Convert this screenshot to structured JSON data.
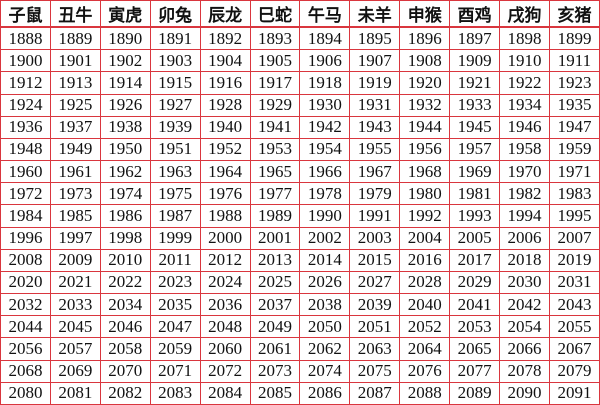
{
  "header": [
    "子鼠",
    "丑牛",
    "寅虎",
    "卯兔",
    "辰龙",
    "巳蛇",
    "午马",
    "未羊",
    "申猴",
    "酉鸡",
    "戌狗",
    "亥猪"
  ],
  "rows": [
    [
      "1888",
      "1889",
      "1890",
      "1891",
      "1892",
      "1893",
      "1894",
      "1895",
      "1896",
      "1897",
      "1898",
      "1899"
    ],
    [
      "1900",
      "1901",
      "1902",
      "1903",
      "1904",
      "1905",
      "1906",
      "1907",
      "1908",
      "1909",
      "1910",
      "1911"
    ],
    [
      "1912",
      "1913",
      "1914",
      "1915",
      "1916",
      "1917",
      "1918",
      "1919",
      "1920",
      "1921",
      "1922",
      "1923"
    ],
    [
      "1924",
      "1925",
      "1926",
      "1927",
      "1928",
      "1929",
      "1930",
      "1931",
      "1932",
      "1933",
      "1934",
      "1935"
    ],
    [
      "1936",
      "1937",
      "1938",
      "1939",
      "1940",
      "1941",
      "1942",
      "1943",
      "1944",
      "1945",
      "1946",
      "1947"
    ],
    [
      "1948",
      "1949",
      "1950",
      "1951",
      "1952",
      "1953",
      "1954",
      "1955",
      "1956",
      "1957",
      "1958",
      "1959"
    ],
    [
      "1960",
      "1961",
      "1962",
      "1963",
      "1964",
      "1965",
      "1966",
      "1967",
      "1968",
      "1969",
      "1970",
      "1971"
    ],
    [
      "1972",
      "1973",
      "1974",
      "1975",
      "1976",
      "1977",
      "1978",
      "1979",
      "1980",
      "1981",
      "1982",
      "1983"
    ],
    [
      "1984",
      "1985",
      "1986",
      "1987",
      "1988",
      "1989",
      "1990",
      "1991",
      "1992",
      "1993",
      "1994",
      "1995"
    ],
    [
      "1996",
      "1997",
      "1998",
      "1999",
      "2000",
      "2001",
      "2002",
      "2003",
      "2004",
      "2005",
      "2006",
      "2007"
    ],
    [
      "2008",
      "2009",
      "2010",
      "2011",
      "2012",
      "2013",
      "2014",
      "2015",
      "2016",
      "2017",
      "2018",
      "2019"
    ],
    [
      "2020",
      "2021",
      "2022",
      "2023",
      "2024",
      "2025",
      "2026",
      "2027",
      "2028",
      "2029",
      "2030",
      "2031"
    ],
    [
      "2032",
      "2033",
      "2034",
      "2035",
      "2036",
      "2037",
      "2038",
      "2039",
      "2040",
      "2041",
      "2042",
      "2043"
    ],
    [
      "2044",
      "2045",
      "2046",
      "2047",
      "2048",
      "2049",
      "2050",
      "2051",
      "2052",
      "2053",
      "2054",
      "2055"
    ],
    [
      "2056",
      "2057",
      "2058",
      "2059",
      "2060",
      "2061",
      "2062",
      "2063",
      "2064",
      "2065",
      "2066",
      "2067"
    ],
    [
      "2068",
      "2069",
      "2070",
      "2071",
      "2072",
      "2073",
      "2074",
      "2075",
      "2076",
      "2077",
      "2078",
      "2079"
    ],
    [
      "2080",
      "2081",
      "2082",
      "2083",
      "2084",
      "2085",
      "2086",
      "2087",
      "2088",
      "2089",
      "2090",
      "2091"
    ]
  ],
  "colors": {
    "grid": "#d9363e"
  }
}
